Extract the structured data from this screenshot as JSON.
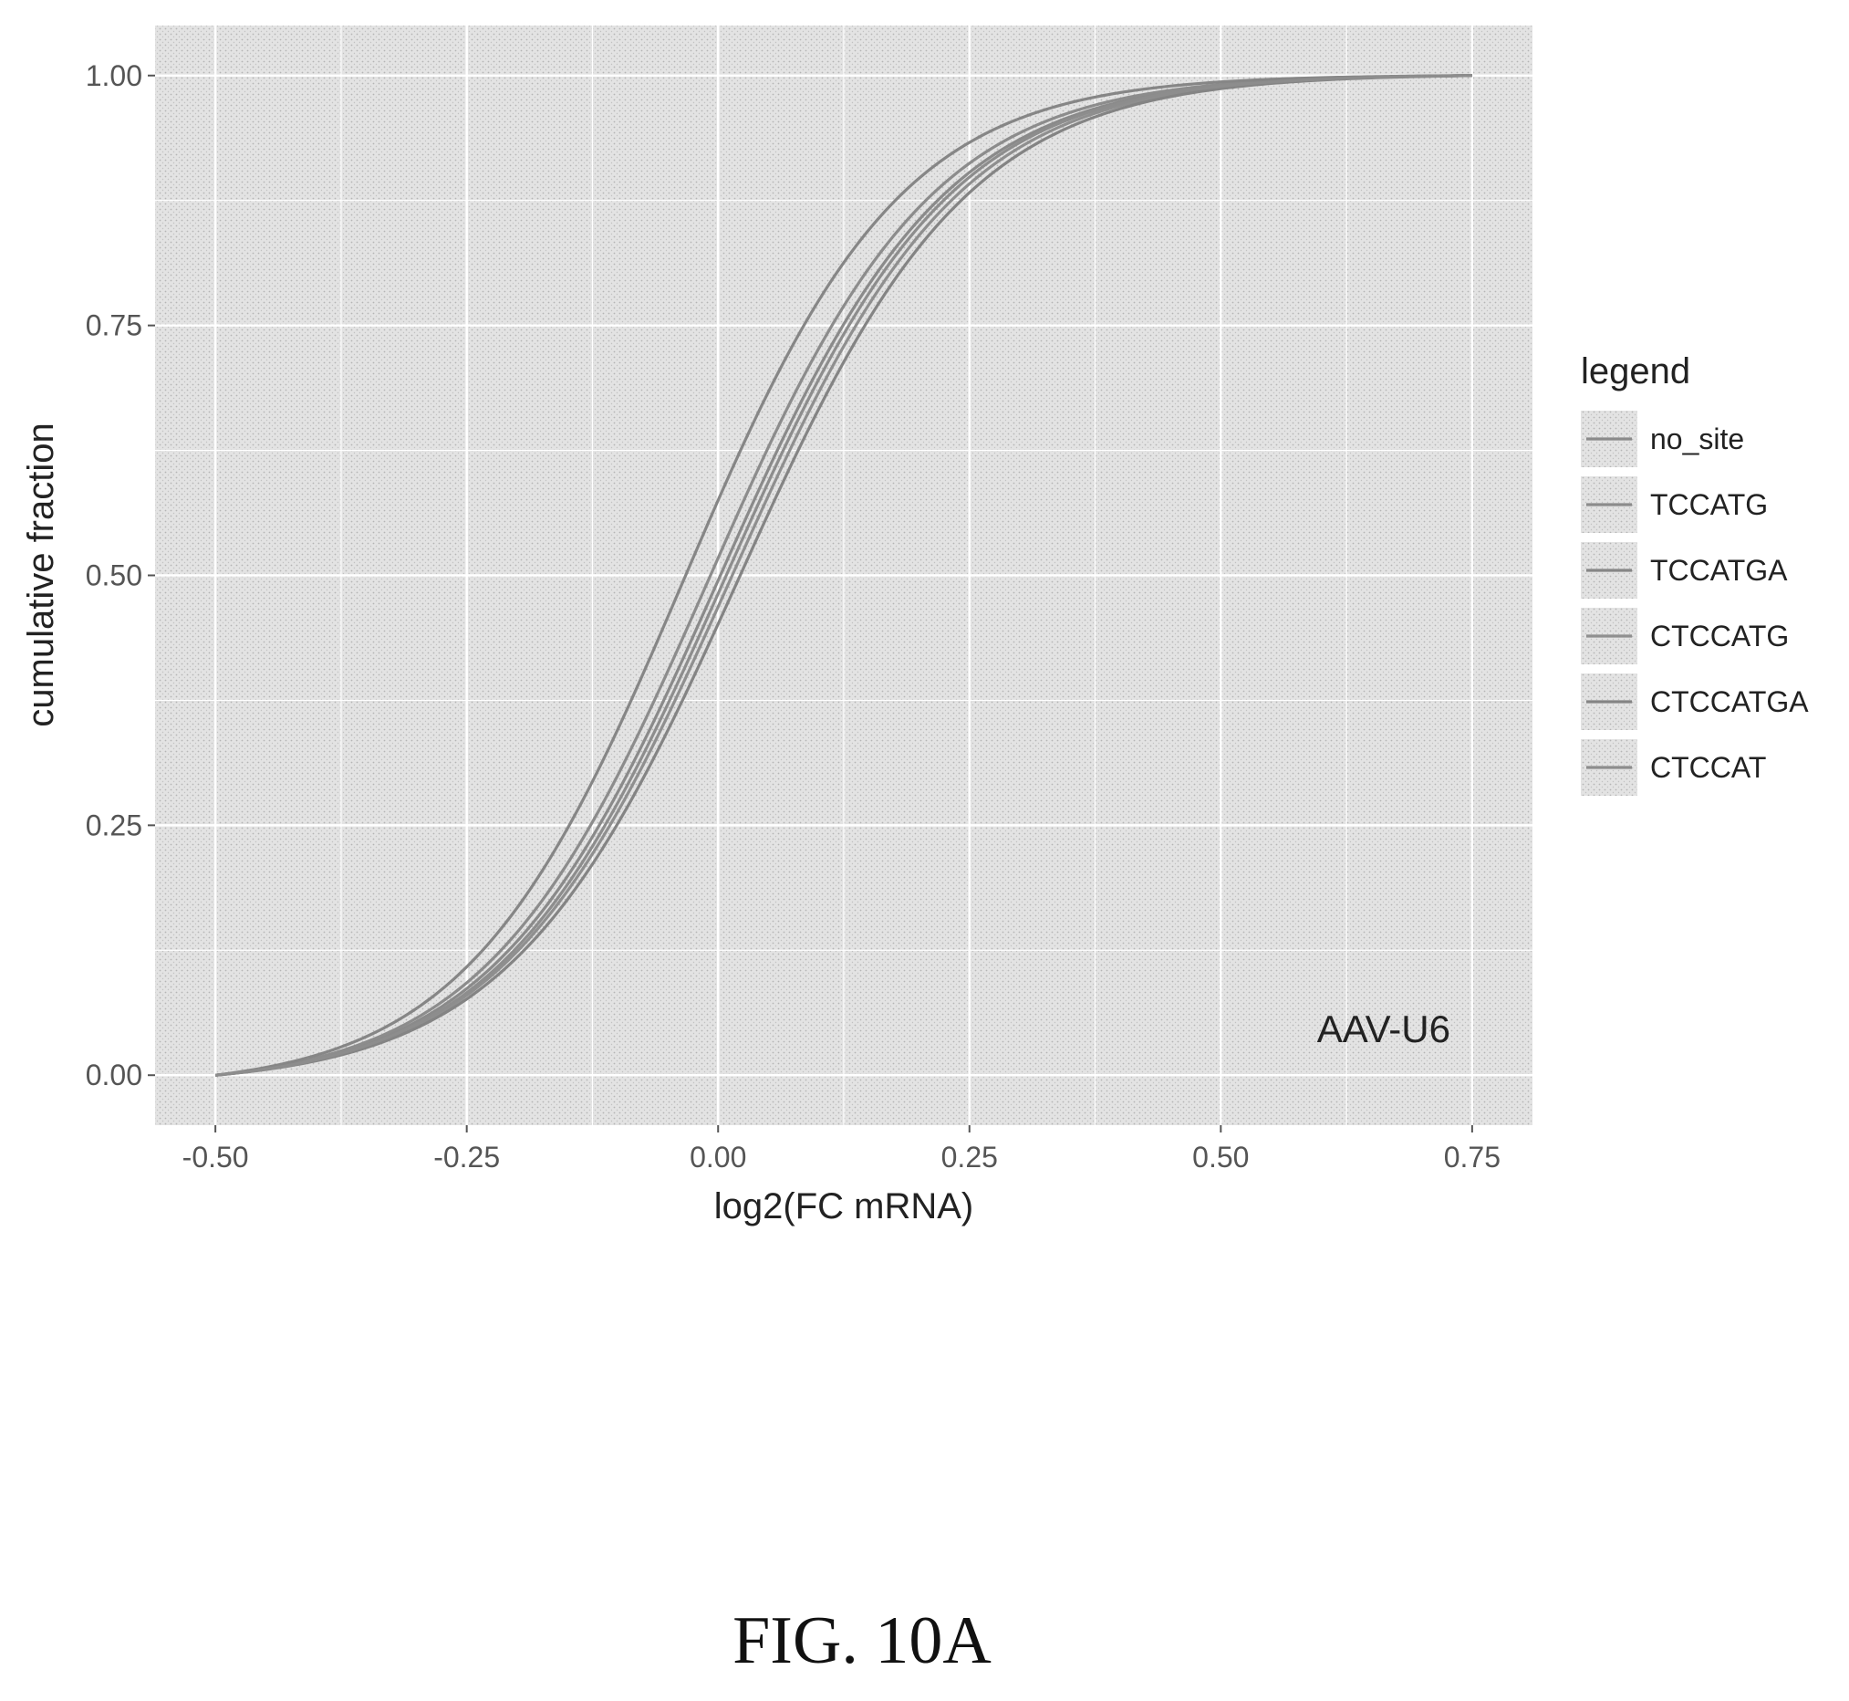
{
  "chart_data": {
    "type": "line",
    "xlabel": "log2(FC mRNA)",
    "ylabel": "cumulative fraction",
    "xlim": [
      -0.56,
      0.81
    ],
    "ylim": [
      -0.05,
      1.05
    ],
    "x_ticks": [
      "-0.50",
      "-0.25",
      "0.00",
      "0.25",
      "0.50",
      "0.75"
    ],
    "y_ticks": [
      "0.00",
      "0.25",
      "0.50",
      "0.75",
      "1.00"
    ],
    "grid": true,
    "legend_title": "legend",
    "legend_position": "right",
    "annotation": "AAV-U6",
    "series": [
      {
        "name": "no_site",
        "color": "#8a8a8a",
        "shift": 0.0,
        "scale": 0.112
      },
      {
        "name": "TCCATG",
        "color": "#8c8c8c",
        "shift": -0.01,
        "scale": 0.111
      },
      {
        "name": "TCCATGA",
        "color": "#868686",
        "shift": -0.035,
        "scale": 0.108
      },
      {
        "name": "CTCCATG",
        "color": "#8f8f8f",
        "shift": 0.012,
        "scale": 0.113
      },
      {
        "name": "CTCCATGA",
        "color": "#848484",
        "shift": 0.02,
        "scale": 0.114
      },
      {
        "name": "CTCCAT",
        "color": "#8d8d8d",
        "shift": 0.006,
        "scale": 0.112
      }
    ]
  },
  "caption": "FIG. 10A"
}
